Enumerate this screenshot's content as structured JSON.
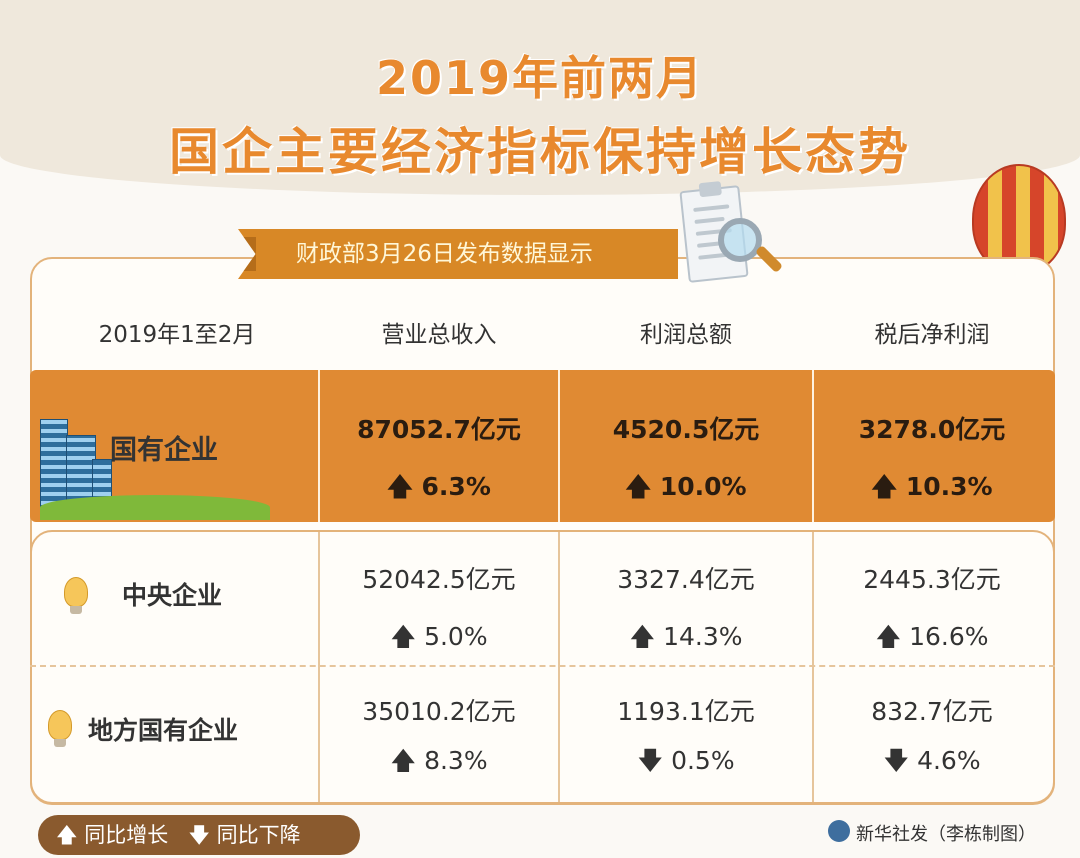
{
  "title": {
    "line1": "2019年前两月",
    "line2": "国企主要经济指标保持增长态势"
  },
  "banner": "财政部3月26日发布数据显示",
  "table": {
    "headers": [
      "2019年1至2月",
      "营业总收入",
      "利润总额",
      "税后净利润"
    ],
    "rows": [
      {
        "name": "国有企业",
        "revenue": "87052.7亿元",
        "revenue_change": "6.3%",
        "revenue_dir": "up",
        "profit": "4520.5亿元",
        "profit_change": "10.0%",
        "profit_dir": "up",
        "net": "3278.0亿元",
        "net_change": "10.3%",
        "net_dir": "up"
      },
      {
        "name": "中央企业",
        "revenue": "52042.5亿元",
        "revenue_change": "5.0%",
        "revenue_dir": "up",
        "profit": "3327.4亿元",
        "profit_change": "14.3%",
        "profit_dir": "up",
        "net": "2445.3亿元",
        "net_change": "16.6%",
        "net_dir": "up"
      },
      {
        "name": "地方国有企业",
        "revenue": "35010.2亿元",
        "revenue_change": "8.3%",
        "revenue_dir": "up",
        "profit": "1193.1亿元",
        "profit_change": "0.5%",
        "profit_dir": "down",
        "net": "832.7亿元",
        "net_change": "4.6%",
        "net_dir": "down"
      }
    ]
  },
  "legend": {
    "up_label": "同比增长",
    "down_label": "同比下降"
  },
  "credit": "新华社发（李栋制图）",
  "colors": {
    "title": "#e8892e",
    "highlight_row": "#e08a33",
    "banner": "#d88826",
    "legend_bg": "#8a5a2e"
  }
}
